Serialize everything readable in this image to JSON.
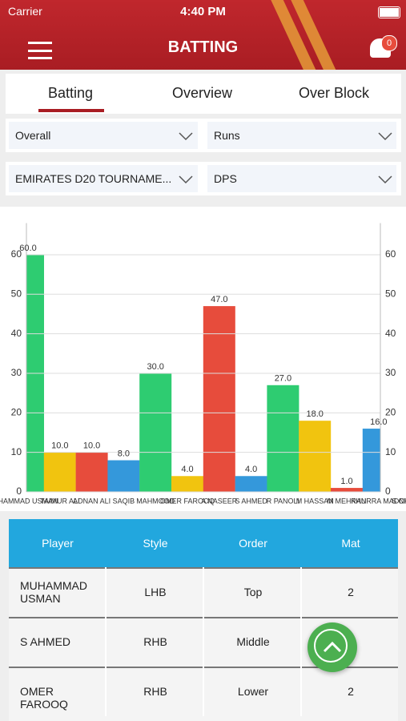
{
  "status_bar": {
    "carrier": "Carrier",
    "time": "4:40 PM"
  },
  "header": {
    "title": "BATTING",
    "badge": "0"
  },
  "tabs": [
    "Batting",
    "Overview",
    "Over Block"
  ],
  "filters": [
    "Overall",
    "Runs",
    "EMIRATES D20 TOURNAME...",
    "DPS"
  ],
  "chart_data": {
    "type": "bar",
    "categories": [
      "HAMMAD USMAN",
      "TAIMUR ALI",
      "ADNAN ALI",
      "SAQIB",
      "MAHMOOD",
      "OMER FAROOQ",
      "A NASEER",
      "S AHMED",
      "R PANOLI",
      "M HASSAN",
      "M MEHRAN",
      "KHURRA MADNI",
      "S CHEEMA"
    ],
    "values": [
      60,
      10,
      10,
      8,
      30,
      4,
      47,
      4,
      27,
      18,
      1,
      16,
      null
    ],
    "value_labels": [
      "60.0",
      "10.0",
      "10.0",
      "8.0",
      "30.0",
      "4.0",
      "47.0",
      "4.0",
      "27.0",
      "18.0",
      "1.0",
      "16.0",
      null
    ],
    "colors": [
      "#2ecc71",
      "#f1c40f",
      "#e74c3c",
      "#3498db"
    ],
    "ylim": [
      0,
      68
    ],
    "yticks": [
      0,
      10,
      20,
      30,
      40,
      50,
      60
    ],
    "y2lim": [
      0,
      68
    ],
    "y2ticks": [
      0,
      10,
      20,
      30,
      40,
      50,
      60
    ],
    "grid": true
  },
  "table": {
    "columns": [
      "Player",
      "Style",
      "Order",
      "Mat"
    ],
    "rows": [
      [
        "MUHAMMAD USMAN",
        "LHB",
        "Top",
        "2"
      ],
      [
        "S AHMED",
        "RHB",
        "Middle"
      ],
      [
        "OMER FAROOQ",
        "RHB",
        "Lower",
        "2"
      ]
    ]
  }
}
